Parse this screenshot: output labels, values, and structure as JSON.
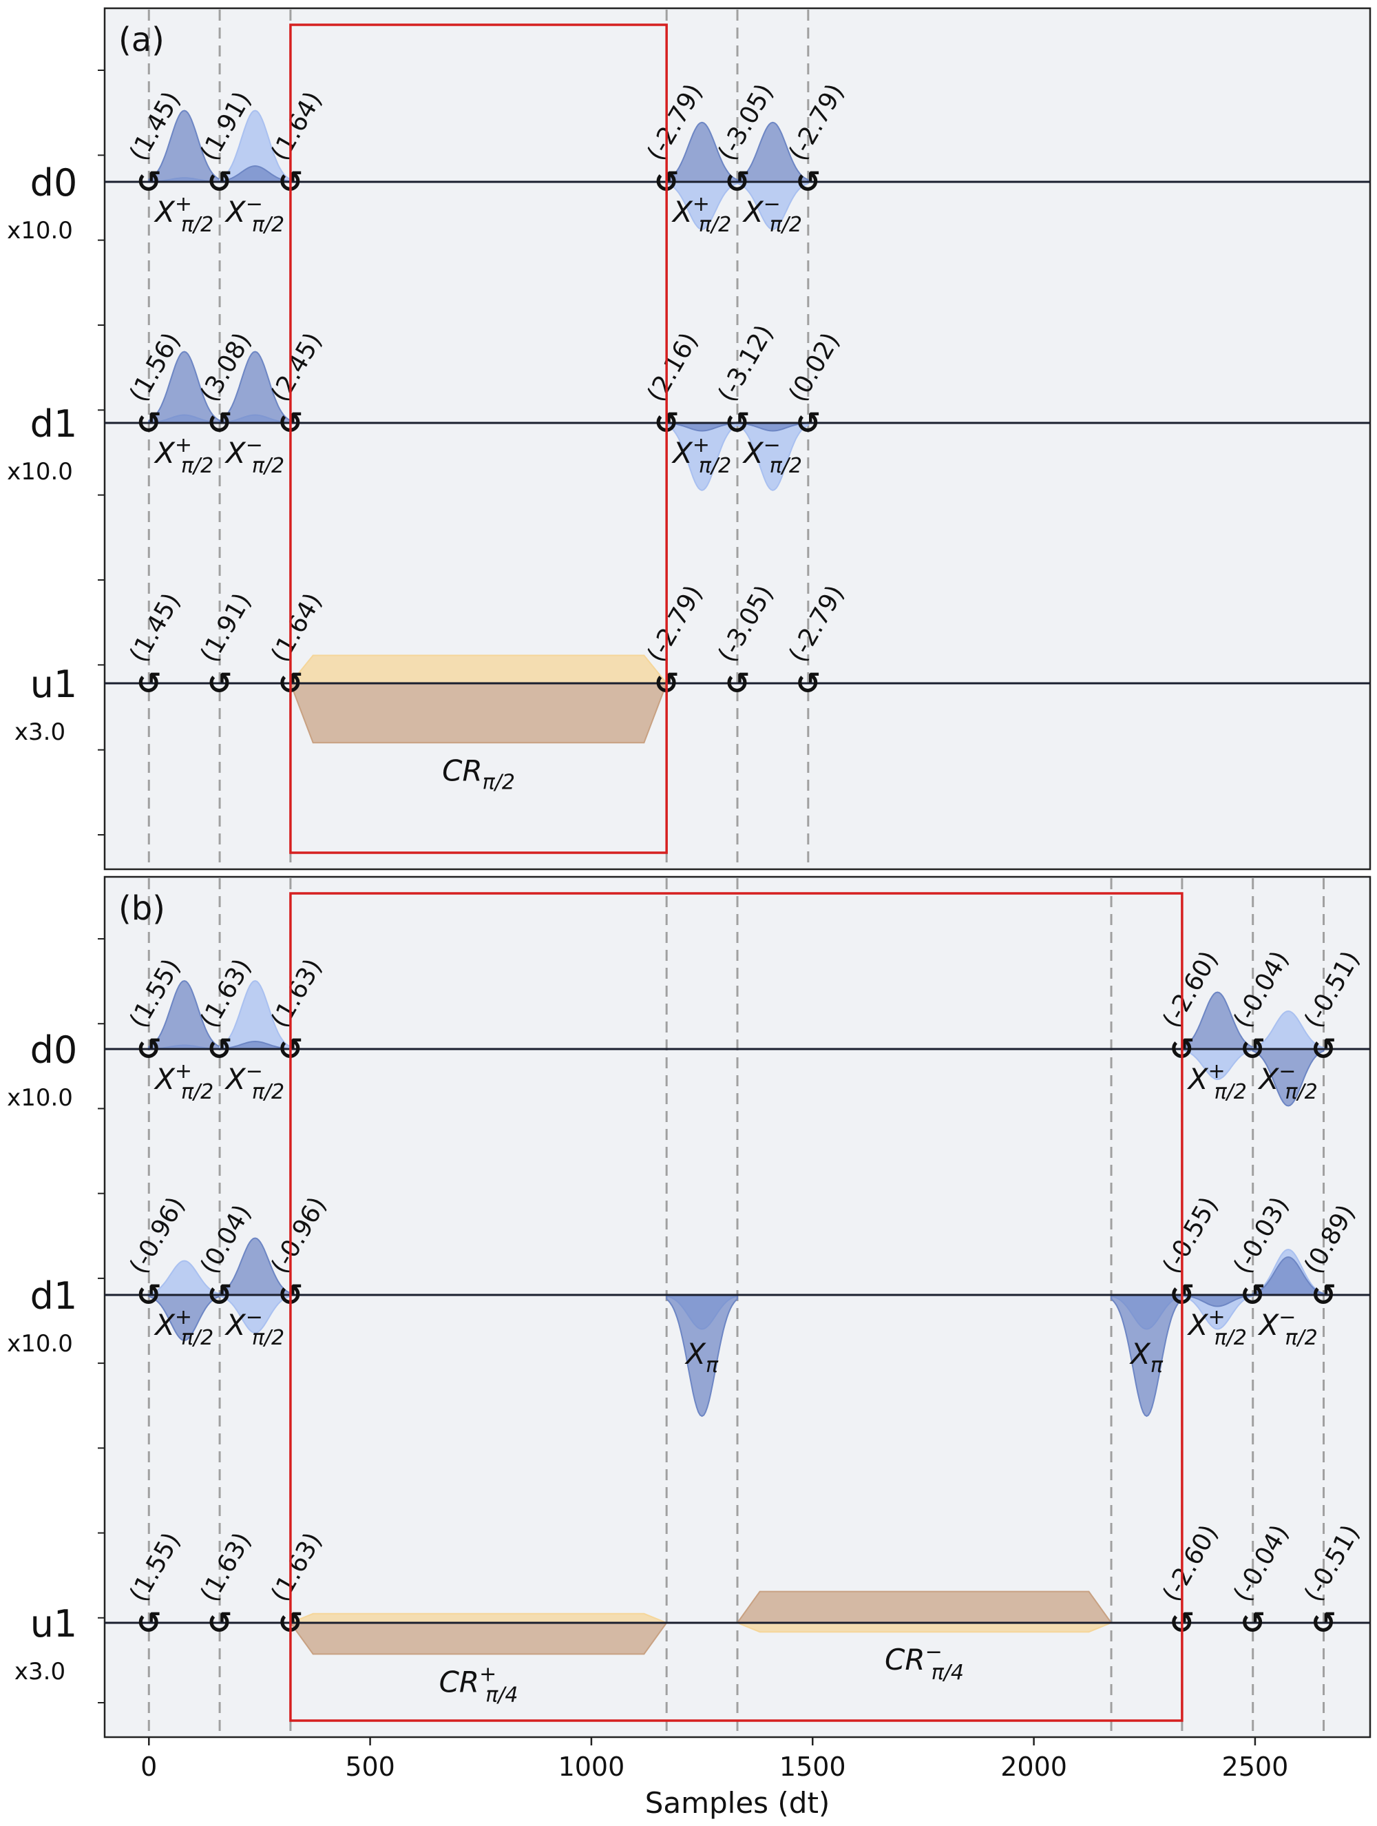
{
  "chart_data": {
    "type": "pulse_schedule",
    "xlabel": "Samples (dt)",
    "xlim": [
      -100,
      2760
    ],
    "xticks": [
      0,
      500,
      1000,
      1500,
      2000,
      2500
    ],
    "xtick_labels": [
      "0",
      "500",
      "1000",
      "1500",
      "2000",
      "2500"
    ],
    "colors": {
      "drive_real": "#6d86c4",
      "drive_imag": "#a9c0f0",
      "control_real": "#c8a182",
      "control_imag": "#f5d69a",
      "frame_box": "#d62020",
      "barrier": "#a0a0a0"
    },
    "panels": [
      {
        "tag": "(a)",
        "box": [
          320,
          1170
        ],
        "barriers": [
          0,
          160,
          320,
          1170,
          1330,
          1490
        ],
        "channels": [
          {
            "name": "d0",
            "scale": "x10.0",
            "phases": [
              {
                "t": 0,
                "label": "(1.45)"
              },
              {
                "t": 160,
                "label": "(1.91)"
              },
              {
                "t": 320,
                "label": "(1.64)"
              },
              {
                "t": 1170,
                "label": "(-2.79)"
              },
              {
                "t": 1330,
                "label": "(-3.05)"
              },
              {
                "t": 1490,
                "label": "(-2.79)"
              }
            ],
            "pulses": [
              {
                "shape": "gauss",
                "t0": 0,
                "t1": 160,
                "re": 0.9,
                "im": 0.05,
                "gate": "X",
                "sup": "+",
                "sub": "π/2"
              },
              {
                "shape": "gauss",
                "t0": 160,
                "t1": 320,
                "re": 0.2,
                "im": 0.9,
                "gate": "X",
                "sup": "−",
                "sub": "π/2"
              },
              {
                "shape": "gauss",
                "t0": 1170,
                "t1": 1330,
                "re": 0.75,
                "im": -0.6,
                "gate": "X",
                "sup": "+",
                "sub": "π/2"
              },
              {
                "shape": "gauss",
                "t0": 1330,
                "t1": 1490,
                "re": 0.75,
                "im": -0.6,
                "gate": "X",
                "sup": "−",
                "sub": "π/2"
              }
            ]
          },
          {
            "name": "d1",
            "scale": "x10.0",
            "phases": [
              {
                "t": 0,
                "label": "(1.56)"
              },
              {
                "t": 160,
                "label": "(3.08)"
              },
              {
                "t": 320,
                "label": "(2.45)"
              },
              {
                "t": 1170,
                "label": "(2.16)"
              },
              {
                "t": 1330,
                "label": "(-3.12)"
              },
              {
                "t": 1490,
                "label": "(0.02)"
              }
            ],
            "pulses": [
              {
                "shape": "gauss",
                "t0": 0,
                "t1": 160,
                "re": 0.9,
                "im": 0.1,
                "gate": "X",
                "sup": "+",
                "sub": "π/2"
              },
              {
                "shape": "gauss",
                "t0": 160,
                "t1": 320,
                "re": 0.9,
                "im": 0.1,
                "gate": "X",
                "sup": "−",
                "sub": "π/2"
              },
              {
                "shape": "gauss",
                "t0": 1170,
                "t1": 1330,
                "re": -0.1,
                "im": -0.85,
                "gate": "X",
                "sup": "+",
                "sub": "π/2"
              },
              {
                "shape": "gauss",
                "t0": 1330,
                "t1": 1490,
                "re": -0.1,
                "im": -0.85,
                "gate": "X",
                "sup": "−",
                "sub": "π/2"
              }
            ]
          },
          {
            "name": "u1",
            "scale": "x3.0",
            "phases": [
              {
                "t": 0,
                "label": "(1.45)"
              },
              {
                "t": 160,
                "label": "(1.91)"
              },
              {
                "t": 320,
                "label": "(1.64)"
              },
              {
                "t": 1170,
                "label": "(-2.79)"
              },
              {
                "t": 1330,
                "label": "(-3.05)"
              },
              {
                "t": 1490,
                "label": "(-2.79)"
              }
            ],
            "pulses": [
              {
                "shape": "flat",
                "t0": 320,
                "t1": 1170,
                "re": -1.0,
                "im": 0.47,
                "gate": "CR",
                "sup": "",
                "sub": "π/2",
                "label_below": true
              }
            ]
          }
        ]
      },
      {
        "tag": "(b)",
        "box": [
          320,
          2335
        ],
        "barriers": [
          0,
          160,
          320,
          1170,
          1330,
          2175,
          2335,
          2495,
          2655
        ],
        "channels": [
          {
            "name": "d0",
            "scale": "x10.0",
            "phases": [
              {
                "t": 0,
                "label": "(1.55)"
              },
              {
                "t": 160,
                "label": "(1.63)"
              },
              {
                "t": 320,
                "label": "(1.63)"
              },
              {
                "t": 2335,
                "label": "(-2.60)"
              },
              {
                "t": 2495,
                "label": "(-0.04)"
              },
              {
                "t": 2655,
                "label": "(-0.51)"
              }
            ],
            "pulses": [
              {
                "shape": "gauss",
                "t0": 0,
                "t1": 160,
                "re": 0.9,
                "im": 0.05,
                "gate": "X",
                "sup": "+",
                "sub": "π/2"
              },
              {
                "shape": "gauss",
                "t0": 160,
                "t1": 320,
                "re": 0.1,
                "im": 0.9,
                "gate": "X",
                "sup": "−",
                "sub": "π/2"
              },
              {
                "shape": "gauss",
                "t0": 2335,
                "t1": 2495,
                "re": 0.75,
                "im": -0.4,
                "gate": "X",
                "sup": "+",
                "sub": "π/2"
              },
              {
                "shape": "gauss",
                "t0": 2495,
                "t1": 2655,
                "re": -0.75,
                "im": 0.5,
                "gate": "X",
                "sup": "−",
                "sub": "π/2"
              }
            ]
          },
          {
            "name": "d1",
            "scale": "x10.0",
            "phases": [
              {
                "t": 0,
                "label": "(-0.96)"
              },
              {
                "t": 160,
                "label": "(0.04)"
              },
              {
                "t": 320,
                "label": "(-0.96)"
              },
              {
                "t": 2335,
                "label": "(-0.55)"
              },
              {
                "t": 2495,
                "label": "(-0.03)"
              },
              {
                "t": 2655,
                "label": "(0.89)"
              }
            ],
            "pulses": [
              {
                "shape": "gauss",
                "t0": 0,
                "t1": 160,
                "re": -0.6,
                "im": 0.45,
                "gate": "X",
                "sup": "+",
                "sub": "π/2"
              },
              {
                "shape": "gauss",
                "t0": 160,
                "t1": 320,
                "re": 0.75,
                "im": -0.5,
                "gate": "X",
                "sup": "−",
                "sub": "π/2"
              },
              {
                "shape": "gauss",
                "t0": 1170,
                "t1": 1330,
                "re": -1.6,
                "im": -0.45,
                "gate": "X",
                "sup": "",
                "sub": "π"
              },
              {
                "shape": "gauss",
                "t0": 2175,
                "t1": 2335,
                "re": -1.6,
                "im": -0.45,
                "gate": "X",
                "sup": "",
                "sub": "π"
              },
              {
                "shape": "gauss",
                "t0": 2335,
                "t1": 2495,
                "re": -0.15,
                "im": -0.45,
                "gate": "X",
                "sup": "+",
                "sub": "π/2"
              },
              {
                "shape": "gauss",
                "t0": 2495,
                "t1": 2655,
                "re": 0.5,
                "im": 0.6,
                "gate": "X",
                "sup": "−",
                "sub": "π/2"
              }
            ]
          },
          {
            "name": "u1",
            "scale": "x3.0",
            "phases": [
              {
                "t": 0,
                "label": "(1.55)"
              },
              {
                "t": 160,
                "label": "(1.63)"
              },
              {
                "t": 320,
                "label": "(1.63)"
              },
              {
                "t": 2335,
                "label": "(-2.60)"
              },
              {
                "t": 2495,
                "label": "(-0.04)"
              },
              {
                "t": 2655,
                "label": "(-0.51)"
              }
            ],
            "pulses": [
              {
                "shape": "flat",
                "t0": 320,
                "t1": 1170,
                "re": -0.55,
                "im": 0.16,
                "gate": "CR",
                "sup": "+",
                "sub": "π/4",
                "label_below": true
              },
              {
                "shape": "flat",
                "t0": 1330,
                "t1": 2175,
                "re": 0.55,
                "im": -0.16,
                "gate": "CR",
                "sup": "−",
                "sub": "π/4",
                "label_below": true
              }
            ]
          }
        ]
      }
    ]
  }
}
